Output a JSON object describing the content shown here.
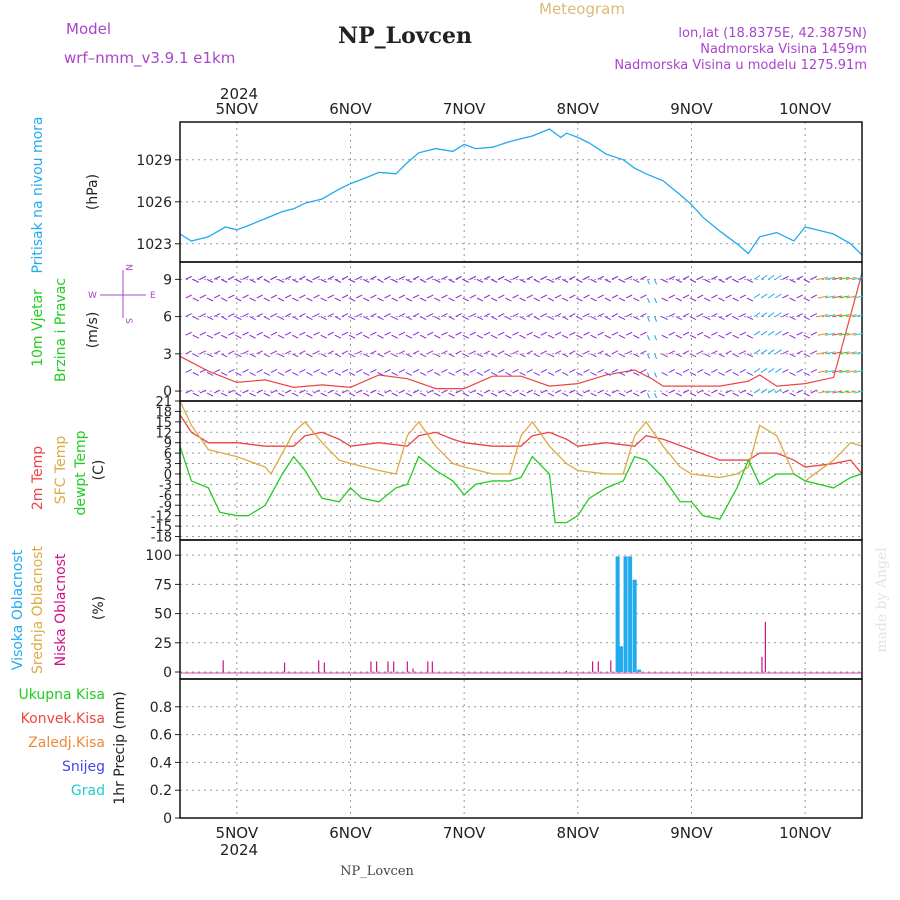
{
  "header": {
    "model_label": "Model",
    "model_name": "wrf–nmm_v3.9.1 e1km",
    "station": "NP_Lovcen",
    "product": "Meteogram",
    "lonlat": "lon,lat (18.8375E, 42.3875N)",
    "elevation": "Nadmorska Visina 1459m",
    "model_elevation": "Nadmorska Visina u modelu 1275.91m",
    "footer_station": "NP_Lovcen",
    "credit": "made by Angel"
  },
  "time_axis": {
    "year": "2024",
    "days": [
      "5NOV",
      "6NOV",
      "7NOV",
      "8NOV",
      "9NOV",
      "10NOV"
    ],
    "start_day": 4.5,
    "end_day": 10.5
  },
  "colors": {
    "pressure": "#22aaee",
    "wind_speed": "#ee4444",
    "wind_barb": "#8822dd",
    "temp2m": "#ee4444",
    "sfc_temp": "#ddaa44",
    "dewpt": "#22cc22",
    "cloud_high": "#22aaee",
    "cloud_mid": "#ddaa44",
    "cloud_low": "#cc1188"
  },
  "panels": {
    "pressure": {
      "ylabel_main": "Pritisak na nivou mora",
      "unit": "(hPa)",
      "ticks": [
        "1029",
        "1026",
        "1023"
      ]
    },
    "wind": {
      "ylabel_main": "10m Vjetar",
      "ylabel_sub": "Brzina i Pravac",
      "unit": "(m/s)",
      "ticks": [
        "9",
        "6",
        "3",
        "0"
      ],
      "compass": {
        "n": "N",
        "s": "S",
        "e": "E",
        "w": "W"
      }
    },
    "temperature": {
      "ylabel_a": "2m Temp",
      "ylabel_b": "SFC Temp",
      "ylabel_c": "dewpt Temp",
      "unit": "(C)",
      "ticks": [
        "21",
        "18",
        "15",
        "12",
        "9",
        "6",
        "3",
        "0",
        "-3",
        "-6",
        "-9",
        "-12",
        "-15",
        "-18"
      ]
    },
    "cloud": {
      "ylabel_a": "Visoka Oblacnost",
      "ylabel_b": "Srednja Oblacnost",
      "ylabel_c": "Niska Oblacnost",
      "unit": "(%)",
      "ticks": [
        "100",
        "75",
        "50",
        "25",
        "0"
      ]
    },
    "precip": {
      "legend": [
        "Ukupna Kisa",
        "Konvek.Kisa",
        "Zaledj.Kisa",
        "Snijeg",
        "Grad"
      ],
      "legend_colors": [
        "#22cc22",
        "#ee4444",
        "#ee8833",
        "#4444ee",
        "#22cccc"
      ],
      "unit": "1hr Precip (mm)",
      "ticks": [
        "0.8",
        "0.6",
        "0.4",
        "0.2",
        "0"
      ]
    }
  },
  "chart_data": [
    {
      "type": "line",
      "title": "Pritisak na nivou mora",
      "ylabel": "(hPa)",
      "ylim": [
        1021.7,
        1031.7
      ],
      "grid": true,
      "series": [
        {
          "name": "Pritisak na nivou mora",
          "x": [
            4.5,
            4.6,
            4.75,
            4.9,
            5.0,
            5.1,
            5.25,
            5.4,
            5.5,
            5.6,
            5.75,
            5.9,
            6.0,
            6.1,
            6.25,
            6.4,
            6.5,
            6.6,
            6.75,
            6.9,
            7.0,
            7.1,
            7.25,
            7.4,
            7.5,
            7.6,
            7.75,
            7.85,
            7.9,
            8.0,
            8.1,
            8.25,
            8.4,
            8.5,
            8.6,
            8.75,
            8.9,
            9.0,
            9.1,
            9.25,
            9.4,
            9.5,
            9.6,
            9.75,
            9.9,
            10.0,
            10.1,
            10.25,
            10.4,
            10.5
          ],
          "values": [
            1023.7,
            1023.2,
            1023.5,
            1024.2,
            1024.0,
            1024.3,
            1024.8,
            1025.3,
            1025.5,
            1025.9,
            1026.2,
            1026.9,
            1027.3,
            1027.6,
            1028.1,
            1028.0,
            1028.8,
            1029.5,
            1029.8,
            1029.6,
            1030.1,
            1029.8,
            1029.9,
            1030.3,
            1030.5,
            1030.7,
            1031.2,
            1030.6,
            1030.9,
            1030.6,
            1030.2,
            1029.4,
            1029.0,
            1028.4,
            1028.0,
            1027.5,
            1026.5,
            1025.8,
            1024.9,
            1023.9,
            1023.0,
            1022.3,
            1023.5,
            1023.8,
            1023.2,
            1024.2,
            1024.0,
            1023.7,
            1023.0,
            1022.2
          ]
        }
      ]
    },
    {
      "type": "line",
      "title": "10m Vjetar Brzina i Pravac",
      "ylabel": "(m/s)",
      "ylim": [
        -0.8,
        10.4
      ],
      "grid": true,
      "series": [
        {
          "name": "Brzina",
          "x": [
            4.5,
            4.75,
            5.0,
            5.25,
            5.5,
            5.75,
            6.0,
            6.25,
            6.5,
            6.75,
            7.0,
            7.25,
            7.5,
            7.75,
            8.0,
            8.25,
            8.5,
            8.65,
            8.75,
            9.0,
            9.25,
            9.5,
            9.6,
            9.75,
            10.0,
            10.25,
            10.5
          ],
          "values": [
            2.8,
            1.6,
            0.7,
            0.9,
            0.3,
            0.5,
            0.3,
            1.3,
            1.0,
            0.2,
            0.2,
            1.2,
            1.2,
            0.4,
            0.6,
            1.3,
            1.7,
            1.0,
            0.4,
            0.4,
            0.4,
            0.8,
            1.3,
            0.4,
            0.6,
            1.1,
            9.5
          ]
        }
      ]
    },
    {
      "type": "line",
      "title": "2m Temp / SFC Temp / dewpt Temp",
      "ylabel": "(C)",
      "ylim": [
        -19,
        21
      ],
      "grid": true,
      "series": [
        {
          "name": "2m Temp",
          "x": [
            4.5,
            4.6,
            4.75,
            5.0,
            5.25,
            5.5,
            5.6,
            5.75,
            5.9,
            6.0,
            6.25,
            6.5,
            6.6,
            6.75,
            6.9,
            7.0,
            7.25,
            7.5,
            7.6,
            7.75,
            7.9,
            8.0,
            8.25,
            8.5,
            8.6,
            8.75,
            9.0,
            9.25,
            9.5,
            9.6,
            9.75,
            9.9,
            10.0,
            10.25,
            10.4,
            10.5
          ],
          "values": [
            17,
            12,
            9,
            9,
            8,
            8,
            11,
            12,
            10,
            8,
            9,
            8,
            11,
            12,
            10,
            9,
            8,
            8,
            11,
            12,
            10,
            8,
            9,
            8,
            11,
            10,
            7,
            4,
            4,
            6,
            6,
            4,
            2,
            3,
            4,
            0
          ]
        },
        {
          "name": "SFC Temp",
          "x": [
            4.5,
            4.6,
            4.75,
            5.0,
            5.25,
            5.3,
            5.5,
            5.6,
            5.75,
            5.9,
            6.0,
            6.25,
            6.4,
            6.5,
            6.6,
            6.75,
            6.9,
            7.0,
            7.25,
            7.4,
            7.5,
            7.6,
            7.75,
            7.9,
            8.0,
            8.25,
            8.4,
            8.5,
            8.6,
            8.75,
            8.9,
            9.0,
            9.25,
            9.4,
            9.5,
            9.6,
            9.75,
            9.9,
            10.0,
            10.25,
            10.4,
            10.5
          ],
          "values": [
            21,
            14,
            7,
            5,
            2,
            0,
            12,
            15,
            9,
            4,
            3,
            1,
            0,
            11,
            15,
            8,
            3,
            2,
            0,
            0,
            11,
            15,
            8,
            3,
            1,
            0,
            0,
            11,
            15,
            8,
            2,
            0,
            -1,
            0,
            2,
            14,
            11,
            0,
            -2,
            4,
            9,
            8
          ]
        },
        {
          "name": "dewpt Temp",
          "x": [
            4.5,
            4.6,
            4.75,
            4.85,
            5.0,
            5.1,
            5.25,
            5.4,
            5.5,
            5.6,
            5.75,
            5.9,
            6.0,
            6.1,
            6.25,
            6.4,
            6.5,
            6.6,
            6.75,
            6.9,
            7.0,
            7.1,
            7.25,
            7.4,
            7.5,
            7.6,
            7.75,
            7.8,
            7.9,
            8.0,
            8.1,
            8.25,
            8.4,
            8.5,
            8.6,
            8.75,
            8.9,
            9.0,
            9.1,
            9.25,
            9.4,
            9.5,
            9.6,
            9.75,
            9.9,
            10.0,
            10.25,
            10.4,
            10.5
          ],
          "values": [
            8,
            -2,
            -4,
            -11,
            -12,
            -12,
            -9,
            0,
            5,
            1,
            -7,
            -8,
            -4,
            -7,
            -8,
            -4,
            -3,
            5,
            1,
            -2,
            -6,
            -3,
            -2,
            -2,
            -1,
            5,
            0,
            -14,
            -14,
            -12,
            -7,
            -4,
            -2,
            5,
            4,
            -1,
            -8,
            -8,
            -12,
            -13,
            -4,
            4,
            -3,
            0,
            0,
            -2,
            -4,
            -1,
            0
          ]
        }
      ]
    },
    {
      "type": "bar",
      "title": "Visoka / Srednja / Niska Oblacnost",
      "ylabel": "(%)",
      "ylim": [
        -6,
        113
      ],
      "grid": true,
      "series": [
        {
          "name": "Visoka Oblacnost",
          "x": [
            8.35,
            8.38,
            8.42,
            8.46,
            8.5,
            8.54
          ],
          "values": [
            99,
            22,
            99,
            99,
            79,
            2
          ]
        },
        {
          "name": "Niska Oblacnost",
          "x": [
            4.88,
            5.42,
            5.72,
            5.77,
            6.18,
            6.23,
            6.33,
            6.38,
            6.5,
            6.55,
            6.68,
            6.72,
            7.9,
            8.13,
            8.18,
            8.29,
            9.62,
            9.65
          ],
          "values": [
            10,
            8,
            10,
            8,
            9,
            9,
            9,
            9,
            9,
            3,
            9,
            9,
            1,
            9,
            9,
            10,
            13,
            43
          ]
        }
      ]
    },
    {
      "type": "bar",
      "title": "1hr Precip",
      "ylabel": "1hr Precip (mm)",
      "ylim": [
        0,
        1.0
      ],
      "grid": true,
      "series": [
        {
          "name": "Ukupna Kisa",
          "x": [],
          "values": []
        }
      ]
    }
  ]
}
